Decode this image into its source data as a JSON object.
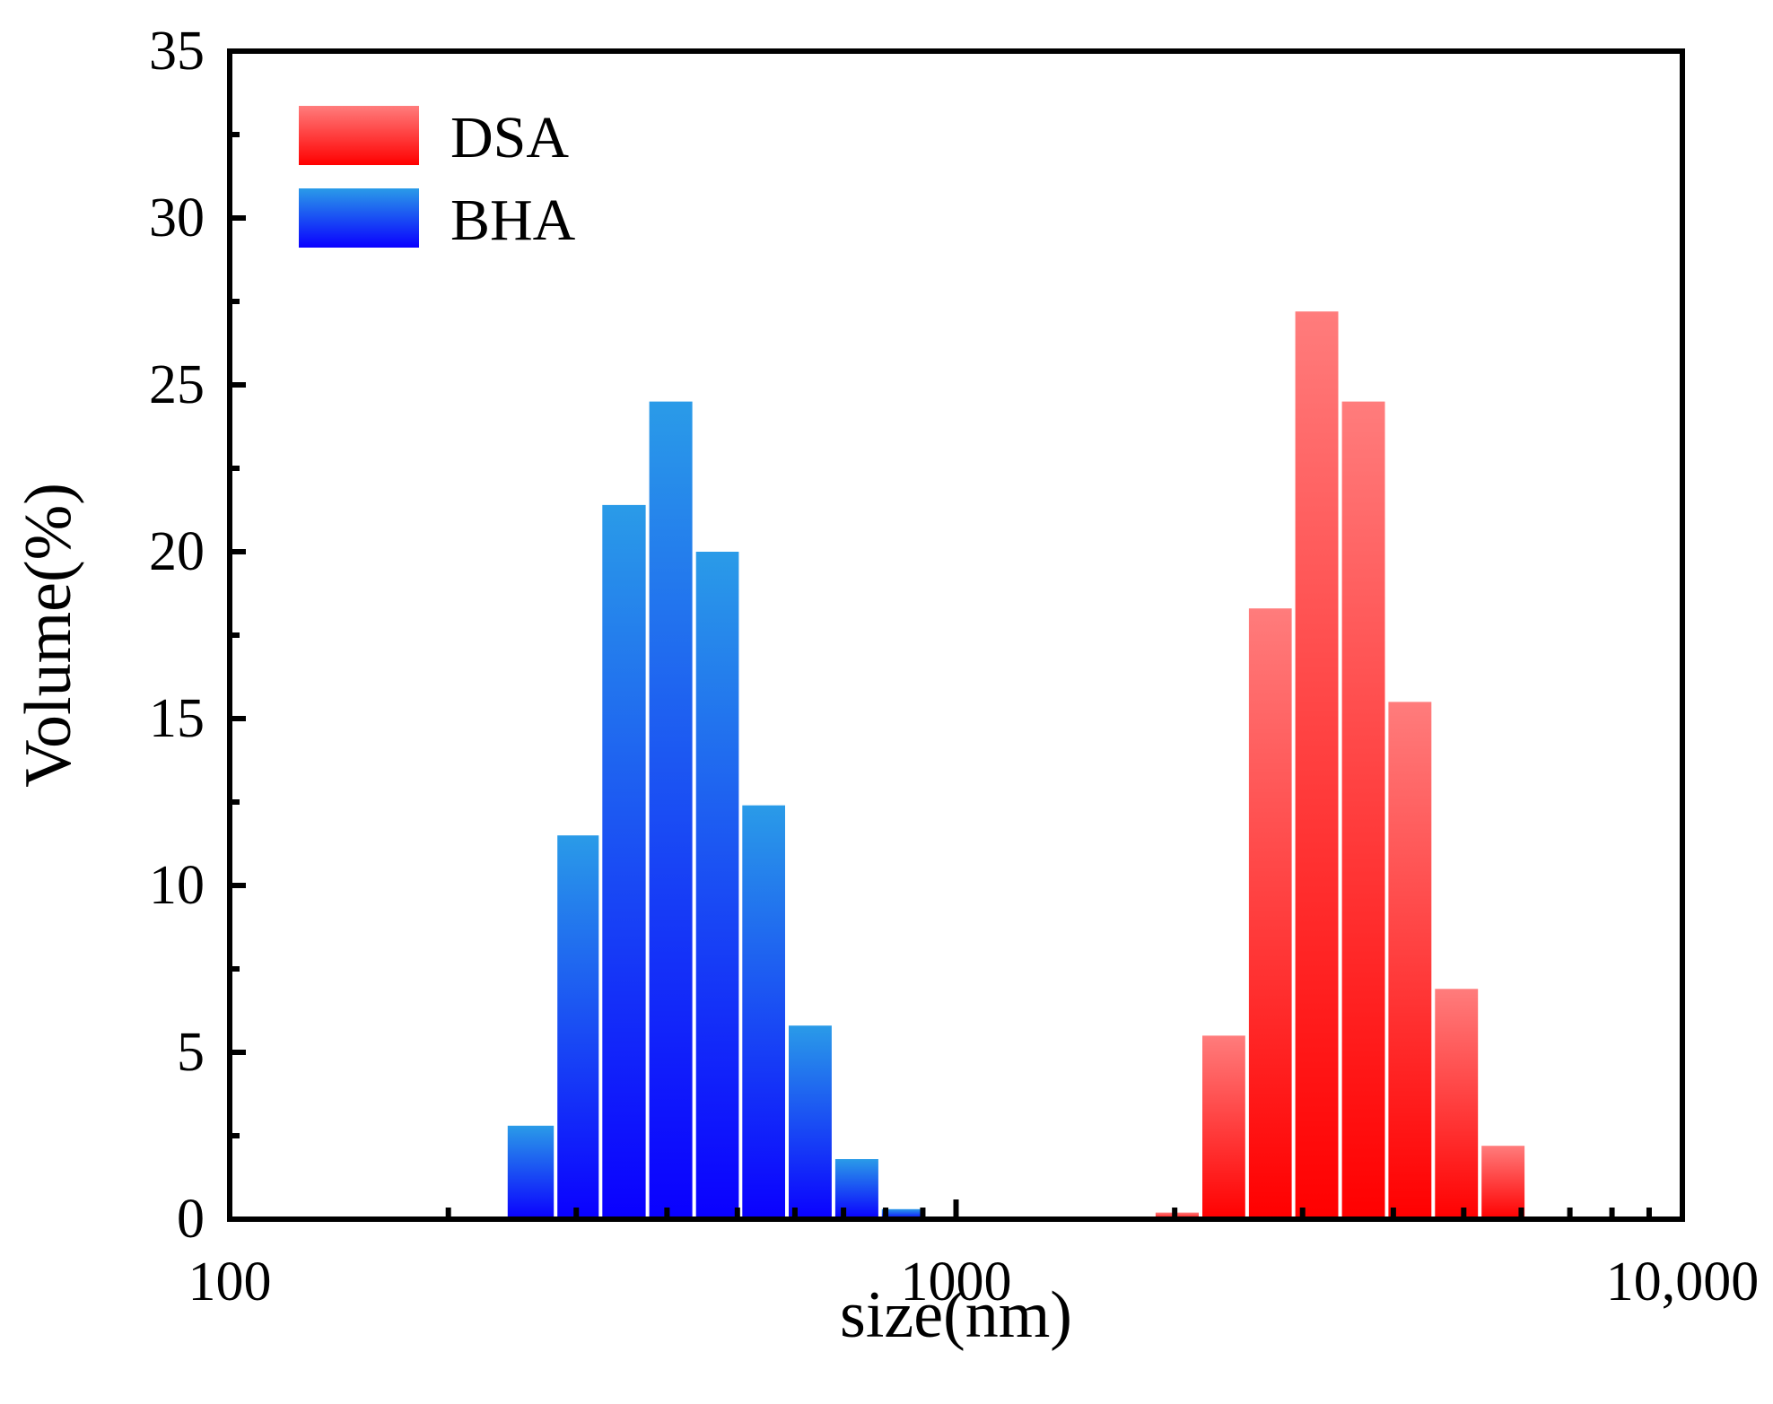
{
  "chart_data": {
    "type": "bar",
    "xscale": "log",
    "xlabel": "size(nm)",
    "ylabel": "Volume(%)",
    "xlim": [
      100,
      10000
    ],
    "ylim": [
      0,
      35
    ],
    "x_tick_values": [
      100,
      1000,
      10000
    ],
    "x_tick_labels": [
      "100",
      "1000",
      "10,000"
    ],
    "y_tick_values": [
      0,
      5,
      10,
      15,
      20,
      25,
      30,
      35
    ],
    "y_tick_labels": [
      "0",
      "5",
      "10",
      "15",
      "20",
      "25",
      "30",
      "35"
    ],
    "legend_position": "top-left",
    "series": [
      {
        "name": "BHA",
        "color_top": "#2a9be8",
        "color_bottom": "#0a00ff",
        "bins": [
          {
            "x0": 240,
            "x1": 281,
            "value": 2.8
          },
          {
            "x0": 281,
            "x1": 324,
            "value": 11.5
          },
          {
            "x0": 324,
            "x1": 376,
            "value": 21.4
          },
          {
            "x0": 376,
            "x1": 436,
            "value": 24.5
          },
          {
            "x0": 436,
            "x1": 505,
            "value": 20.0
          },
          {
            "x0": 505,
            "x1": 585,
            "value": 12.4
          },
          {
            "x0": 585,
            "x1": 678,
            "value": 5.8
          },
          {
            "x0": 678,
            "x1": 786,
            "value": 1.8
          },
          {
            "x0": 786,
            "x1": 911,
            "value": 0.3
          }
        ]
      },
      {
        "name": "DSA",
        "color_top": "#ff7c7c",
        "color_bottom": "#ff0000",
        "bins": [
          {
            "x0": 1872,
            "x1": 2171,
            "value": 0.2
          },
          {
            "x0": 2171,
            "x1": 2516,
            "value": 5.5
          },
          {
            "x0": 2516,
            "x1": 2915,
            "value": 18.3
          },
          {
            "x0": 2915,
            "x1": 3379,
            "value": 27.2
          },
          {
            "x0": 3379,
            "x1": 3916,
            "value": 24.5
          },
          {
            "x0": 3916,
            "x1": 4539,
            "value": 15.5
          },
          {
            "x0": 4539,
            "x1": 5261,
            "value": 6.9
          },
          {
            "x0": 5261,
            "x1": 6098,
            "value": 2.2
          }
        ]
      }
    ]
  }
}
